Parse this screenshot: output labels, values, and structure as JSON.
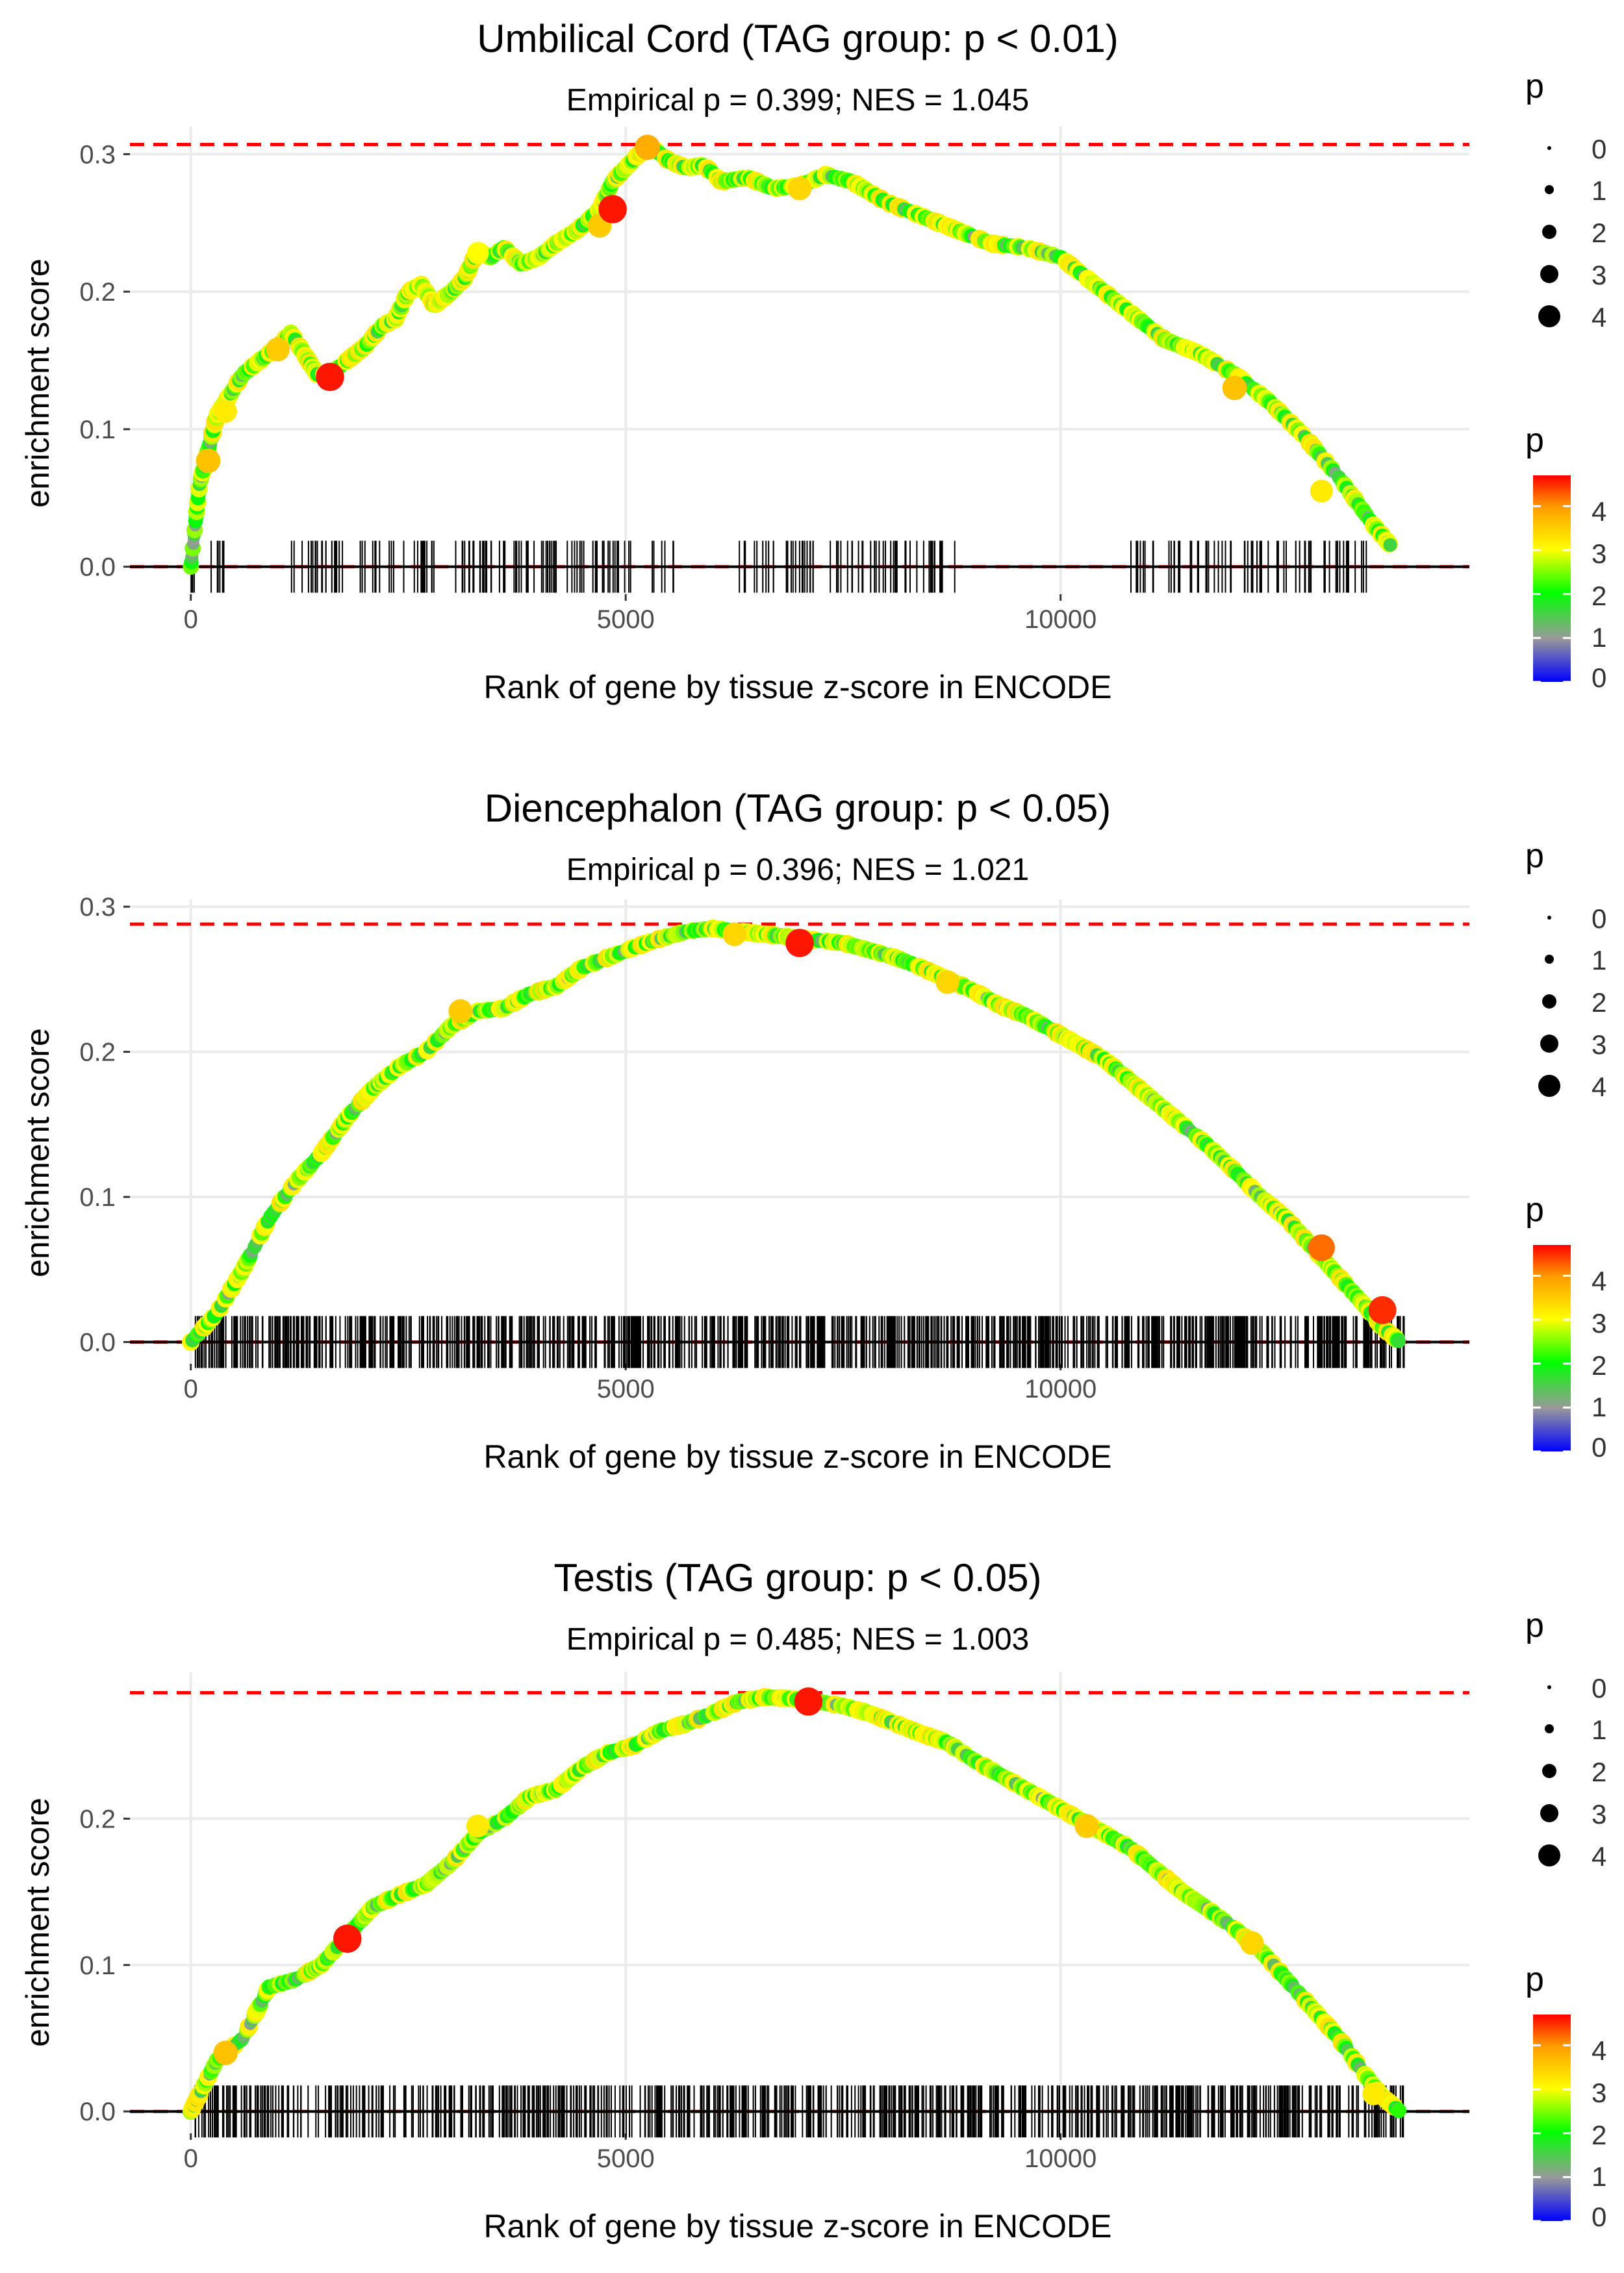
{
  "chart_data": [
    {
      "type": "line",
      "title": "Umbilical Cord (TAG group: p < 0.01)",
      "subtitle": "Empirical p = 0.399; NES = 1.045",
      "xlabel": "Rank of gene by tissue z-score in ENCODE",
      "ylabel": "enrichment score",
      "xlim": [
        -700,
        14700
      ],
      "ylim": [
        -0.02,
        0.32
      ],
      "x_ticks": [
        0,
        5000,
        10000
      ],
      "x_tick_labels": [
        "0",
        "5000",
        "10000"
      ],
      "y_ticks": [
        0.0,
        0.1,
        0.2,
        0.3
      ],
      "y_tick_labels": [
        "0.0",
        "0.1",
        "0.2",
        "0.3"
      ],
      "max_es_line": 0.307,
      "curve": {
        "x": [
          0,
          100,
          200,
          300,
          400,
          600,
          800,
          1000,
          1150,
          1300,
          1450,
          1600,
          1800,
          2000,
          2200,
          2350,
          2500,
          2650,
          2800,
          3000,
          3150,
          3300,
          3450,
          3600,
          3800,
          4000,
          4200,
          4450,
          4700,
          4850,
          5000,
          5150,
          5300,
          5500,
          5700,
          5900,
          6100,
          6400,
          6700,
          7000,
          7300,
          7600,
          8000,
          8400,
          8800,
          9200,
          9600,
          10000,
          10400,
          10800,
          11200,
          11600,
          12000,
          12400,
          12800,
          13200,
          13600,
          13800
        ],
        "y": [
          0.0,
          0.06,
          0.085,
          0.11,
          0.12,
          0.14,
          0.15,
          0.16,
          0.17,
          0.155,
          0.14,
          0.14,
          0.15,
          0.16,
          0.175,
          0.18,
          0.2,
          0.205,
          0.19,
          0.2,
          0.21,
          0.23,
          0.225,
          0.232,
          0.22,
          0.225,
          0.235,
          0.245,
          0.26,
          0.28,
          0.29,
          0.3,
          0.305,
          0.295,
          0.29,
          0.292,
          0.28,
          0.283,
          0.275,
          0.277,
          0.285,
          0.28,
          0.265,
          0.255,
          0.245,
          0.235,
          0.232,
          0.225,
          0.205,
          0.185,
          0.165,
          0.155,
          0.14,
          0.12,
          0.095,
          0.065,
          0.03,
          0.015
        ]
      },
      "highlight_points": [
        {
          "x": 200,
          "y": 0.077,
          "p": 3.6
        },
        {
          "x": 400,
          "y": 0.113,
          "p": 3.2
        },
        {
          "x": 1000,
          "y": 0.158,
          "p": 3.5
        },
        {
          "x": 1600,
          "y": 0.138,
          "p": 4.6
        },
        {
          "x": 3300,
          "y": 0.228,
          "p": 3.0
        },
        {
          "x": 4700,
          "y": 0.248,
          "p": 3.5
        },
        {
          "x": 4850,
          "y": 0.26,
          "p": 4.6
        },
        {
          "x": 5250,
          "y": 0.305,
          "p": 3.8
        },
        {
          "x": 7000,
          "y": 0.275,
          "p": 3.4
        },
        {
          "x": 12000,
          "y": 0.13,
          "p": 3.6
        },
        {
          "x": 13000,
          "y": 0.055,
          "p": 3.2
        }
      ],
      "gene_ticks": {
        "ranges": [
          [
            0,
            400
          ],
          [
            1100,
            2800
          ],
          [
            3000,
            5600
          ],
          [
            6300,
            8800
          ],
          [
            10800,
            13600
          ]
        ],
        "count": 260
      },
      "legend": {
        "size_title": "p",
        "size_labels": [
          "0",
          "1",
          "2",
          "3",
          "4"
        ],
        "color_title": "p",
        "color_labels": [
          "4",
          "3",
          "2",
          "1",
          "0"
        ],
        "color_max": 4.7
      }
    },
    {
      "type": "line",
      "title": "Diencephalon (TAG group: p < 0.05)",
      "subtitle": "Empirical p = 0.396; NES = 1.021",
      "xlabel": "Rank of gene by tissue z-score in ENCODE",
      "ylabel": "enrichment score",
      "xlim": [
        -700,
        14700
      ],
      "ylim": [
        -0.015,
        0.305
      ],
      "x_ticks": [
        0,
        5000,
        10000
      ],
      "x_tick_labels": [
        "0",
        "5000",
        "10000"
      ],
      "y_ticks": [
        0.0,
        0.1,
        0.2,
        0.3
      ],
      "y_tick_labels": [
        "0.0",
        "0.1",
        "0.2",
        "0.3"
      ],
      "max_es_line": 0.288,
      "curve": {
        "x": [
          0,
          300,
          600,
          900,
          1200,
          1500,
          1800,
          2100,
          2400,
          2700,
          3000,
          3300,
          3600,
          3900,
          4200,
          4500,
          4800,
          5100,
          5400,
          5700,
          6000,
          6300,
          6600,
          6900,
          7200,
          7500,
          7800,
          8100,
          8400,
          8700,
          9000,
          9300,
          9600,
          9900,
          10200,
          10500,
          10800,
          11100,
          11400,
          11700,
          12000,
          12300,
          12600,
          12900,
          13200,
          13500,
          13700,
          13900
        ],
        "y": [
          0.0,
          0.02,
          0.05,
          0.085,
          0.11,
          0.13,
          0.155,
          0.175,
          0.19,
          0.2,
          0.218,
          0.228,
          0.23,
          0.24,
          0.245,
          0.258,
          0.265,
          0.272,
          0.278,
          0.283,
          0.285,
          0.283,
          0.281,
          0.279,
          0.277,
          0.275,
          0.27,
          0.265,
          0.258,
          0.25,
          0.242,
          0.232,
          0.225,
          0.215,
          0.205,
          0.195,
          0.18,
          0.165,
          0.15,
          0.135,
          0.118,
          0.1,
          0.085,
          0.065,
          0.045,
          0.025,
          0.01,
          0.0
        ]
      },
      "highlight_points": [
        {
          "x": 3100,
          "y": 0.228,
          "p": 3.5
        },
        {
          "x": 6250,
          "y": 0.281,
          "p": 3.4
        },
        {
          "x": 7000,
          "y": 0.275,
          "p": 4.6
        },
        {
          "x": 8700,
          "y": 0.248,
          "p": 3.4
        },
        {
          "x": 13000,
          "y": 0.065,
          "p": 4.2
        },
        {
          "x": 13700,
          "y": 0.022,
          "p": 4.5
        }
      ],
      "gene_ticks": {
        "ranges": [
          [
            50,
            13950
          ]
        ],
        "count": 900
      },
      "legend": {
        "size_title": "p",
        "size_labels": [
          "0",
          "1",
          "2",
          "3",
          "4"
        ],
        "color_title": "p",
        "color_labels": [
          "4",
          "3",
          "2",
          "1",
          "0"
        ],
        "color_max": 4.7
      }
    },
    {
      "type": "line",
      "title": "Testis (TAG group: p < 0.05)",
      "subtitle": "Empirical p = 0.485; NES = 1.003",
      "xlabel": "Rank of gene by tissue z-score in ENCODE",
      "ylabel": "enrichment score",
      "xlim": [
        -700,
        14700
      ],
      "ylim": [
        -0.015,
        0.3
      ],
      "x_ticks": [
        0,
        5000,
        10000
      ],
      "x_tick_labels": [
        "0",
        "5000",
        "10000"
      ],
      "y_ticks": [
        0.0,
        0.1,
        0.2
      ],
      "y_tick_labels": [
        "0.0",
        "0.1",
        "0.2"
      ],
      "max_es_line": 0.286,
      "curve": {
        "x": [
          0,
          300,
          600,
          900,
          1200,
          1500,
          1800,
          2100,
          2400,
          2700,
          3000,
          3300,
          3600,
          3900,
          4200,
          4500,
          4800,
          5100,
          5400,
          5700,
          6000,
          6300,
          6600,
          6900,
          7200,
          7500,
          7800,
          8100,
          8400,
          8700,
          9000,
          9300,
          9600,
          9900,
          10200,
          10500,
          10800,
          11100,
          11400,
          11700,
          12000,
          12300,
          12600,
          12900,
          13200,
          13500,
          13700,
          13900
        ],
        "y": [
          0.0,
          0.035,
          0.05,
          0.085,
          0.09,
          0.1,
          0.12,
          0.14,
          0.148,
          0.155,
          0.17,
          0.19,
          0.2,
          0.215,
          0.22,
          0.235,
          0.245,
          0.25,
          0.26,
          0.265,
          0.272,
          0.28,
          0.283,
          0.282,
          0.28,
          0.277,
          0.272,
          0.265,
          0.258,
          0.252,
          0.24,
          0.23,
          0.22,
          0.21,
          0.2,
          0.19,
          0.18,
          0.165,
          0.15,
          0.138,
          0.125,
          0.11,
          0.09,
          0.07,
          0.05,
          0.025,
          0.01,
          0.0
        ]
      },
      "highlight_points": [
        {
          "x": 400,
          "y": 0.04,
          "p": 3.6
        },
        {
          "x": 1800,
          "y": 0.118,
          "p": 4.6
        },
        {
          "x": 3300,
          "y": 0.195,
          "p": 3.2
        },
        {
          "x": 7100,
          "y": 0.28,
          "p": 4.6
        },
        {
          "x": 10300,
          "y": 0.195,
          "p": 3.5
        },
        {
          "x": 12200,
          "y": 0.115,
          "p": 3.4
        },
        {
          "x": 13600,
          "y": 0.012,
          "p": 3.2
        }
      ],
      "gene_ticks": {
        "ranges": [
          [
            50,
            13950
          ]
        ],
        "count": 720
      },
      "legend": {
        "size_title": "p",
        "size_labels": [
          "0",
          "1",
          "2",
          "3",
          "4"
        ],
        "color_title": "p",
        "color_labels": [
          "4",
          "3",
          "2",
          "1",
          "0"
        ],
        "color_max": 4.7
      }
    }
  ]
}
